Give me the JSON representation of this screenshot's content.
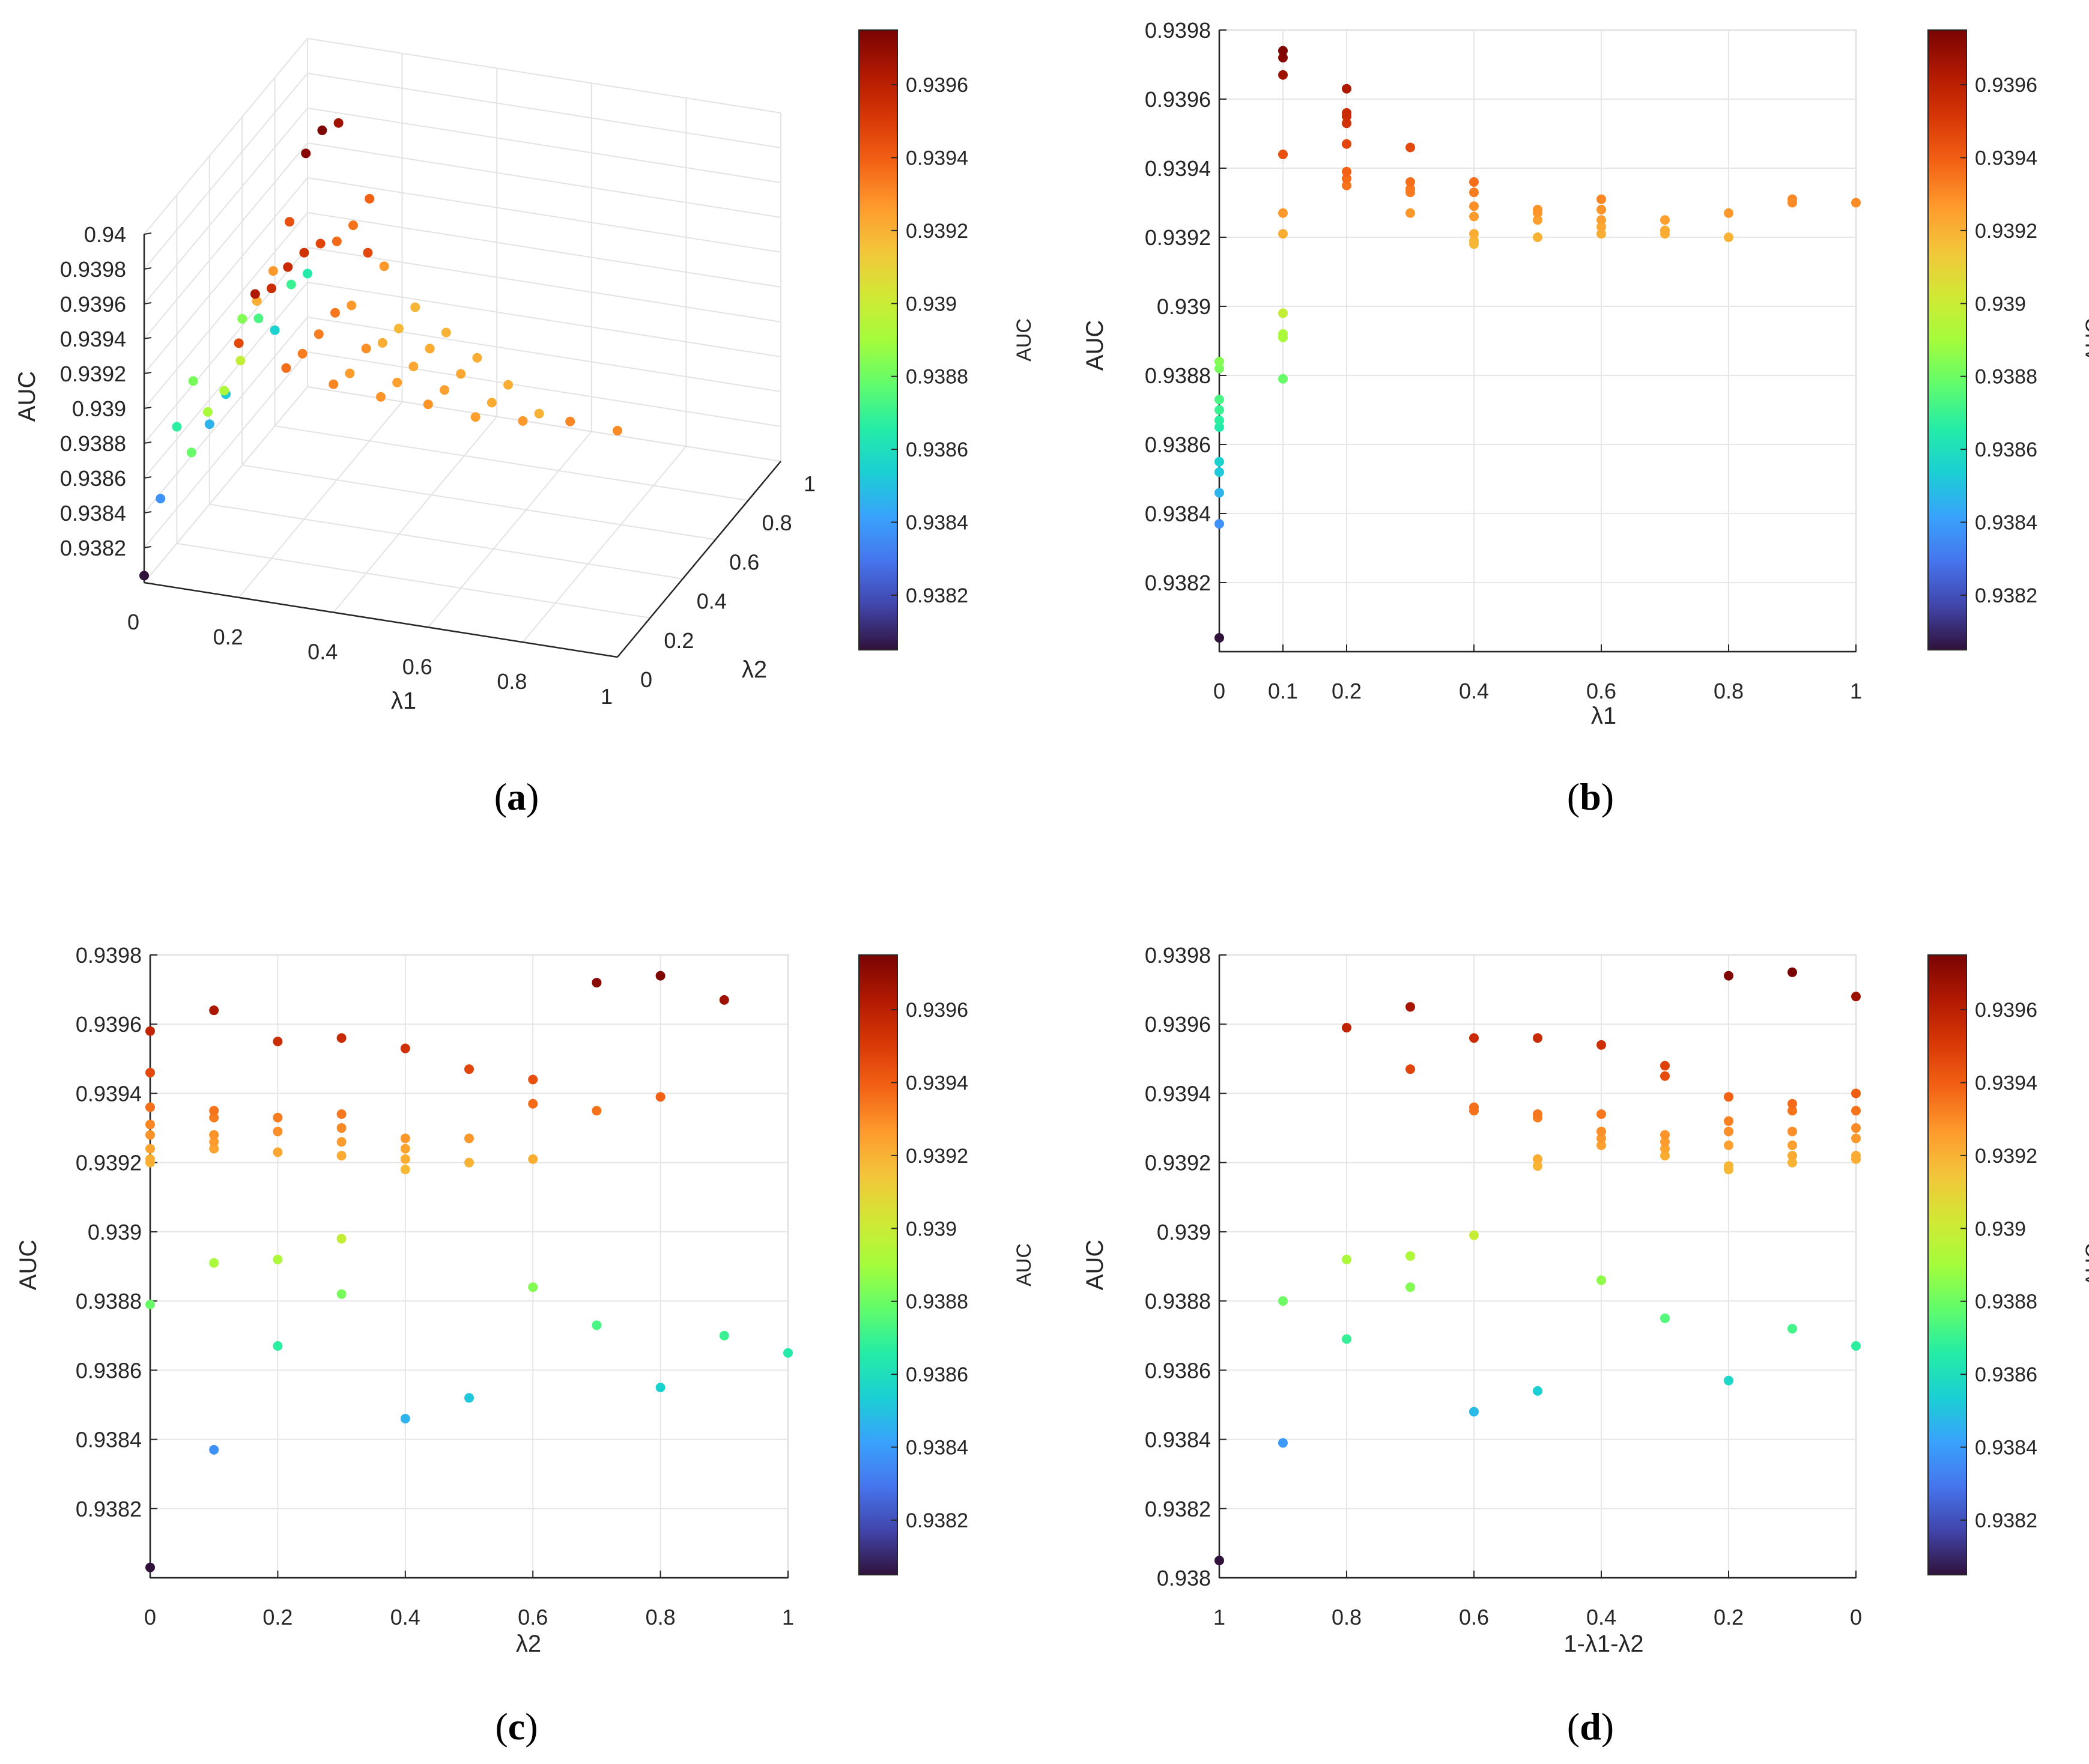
{
  "colormap": [
    "#30123b",
    "#4145ab",
    "#4675ed",
    "#39a2fc",
    "#1bcfd4",
    "#24eca6",
    "#61fc6c",
    "#a4fc3b",
    "#d1e834",
    "#f3c63a",
    "#fe9b2d",
    "#f36315",
    "#d93806",
    "#b11901",
    "#7a0403"
  ],
  "colorbar": {
    "min": 0.93805,
    "max": 0.93975,
    "ticks": [
      "0.9382",
      "0.9384",
      "0.9386",
      "0.9388",
      "0.939",
      "0.9392",
      "0.9394",
      "0.9396"
    ],
    "label": "AUC"
  },
  "captions": {
    "a": "a",
    "b": "b",
    "c": "c",
    "d": "d"
  },
  "chart_data": [
    {
      "id": "a",
      "type": "scatter3d",
      "title": "",
      "xlabel": "λ1",
      "ylabel": "λ2",
      "zlabel": "AUC",
      "xticks": [
        "0",
        "0.2",
        "0.4",
        "0.6",
        "0.8",
        "1"
      ],
      "yticks": [
        "0",
        "0.2",
        "0.4",
        "0.6",
        "0.8",
        "1"
      ],
      "zticks": [
        "0.94",
        "0.9398",
        "0.9396",
        "0.9394",
        "0.9392",
        "0.939",
        "0.9388",
        "0.9386",
        "0.9384",
        "0.9382"
      ],
      "zlim": [
        0.938,
        0.94
      ],
      "points": [
        [
          0,
          0,
          0.93804
        ],
        [
          0,
          0.1,
          0.93837
        ],
        [
          0,
          0.2,
          0.93867
        ],
        [
          0,
          0.3,
          0.93882
        ],
        [
          0,
          0.4,
          0.93846
        ],
        [
          0,
          0.5,
          0.93852
        ],
        [
          0,
          0.6,
          0.93884
        ],
        [
          0,
          0.7,
          0.93873
        ],
        [
          0,
          0.8,
          0.93855
        ],
        [
          0,
          0.9,
          0.9387
        ],
        [
          0,
          1,
          0.93865
        ],
        [
          0.1,
          0,
          0.93879
        ],
        [
          0.1,
          0.1,
          0.93891
        ],
        [
          0.1,
          0.2,
          0.93892
        ],
        [
          0.1,
          0.3,
          0.93898
        ],
        [
          0.1,
          0.4,
          0.93921
        ],
        [
          0.1,
          0.5,
          0.93927
        ],
        [
          0.1,
          0.6,
          0.93944
        ],
        [
          0.1,
          0.7,
          0.93972
        ],
        [
          0.1,
          0.8,
          0.93974
        ],
        [
          0.1,
          0.9,
          0.93967
        ],
        [
          0.2,
          0,
          0.93946
        ],
        [
          0.2,
          0.1,
          0.93963
        ],
        [
          0.2,
          0.2,
          0.93955
        ],
        [
          0.2,
          0.3,
          0.93956
        ],
        [
          0.2,
          0.4,
          0.93953
        ],
        [
          0.2,
          0.5,
          0.93947
        ],
        [
          0.2,
          0.6,
          0.93937
        ],
        [
          0.2,
          0.7,
          0.93935
        ],
        [
          0.2,
          0.8,
          0.93939
        ],
        [
          0.3,
          0,
          0.93936
        ],
        [
          0.3,
          0.1,
          0.93933
        ],
        [
          0.3,
          0.2,
          0.93933
        ],
        [
          0.3,
          0.3,
          0.93934
        ],
        [
          0.3,
          0.4,
          0.93927
        ],
        [
          0.3,
          0.5,
          0.93946
        ],
        [
          0.3,
          0.6,
          0.93927
        ],
        [
          0.4,
          0,
          0.93931
        ],
        [
          0.4,
          0.1,
          0.93926
        ],
        [
          0.4,
          0.2,
          0.93929
        ],
        [
          0.4,
          0.3,
          0.93921
        ],
        [
          0.4,
          0.4,
          0.93918
        ],
        [
          0.4,
          0.5,
          0.93919
        ],
        [
          0.5,
          0,
          0.93928
        ],
        [
          0.5,
          0.1,
          0.93925
        ],
        [
          0.5,
          0.2,
          0.93923
        ],
        [
          0.5,
          0.3,
          0.93922
        ],
        [
          0.5,
          0.4,
          0.9392
        ],
        [
          0.6,
          0,
          0.93928
        ],
        [
          0.6,
          0.1,
          0.93925
        ],
        [
          0.6,
          0.2,
          0.93923
        ],
        [
          0.6,
          0.3,
          0.93921
        ],
        [
          0.7,
          0,
          0.93925
        ],
        [
          0.7,
          0.1,
          0.93922
        ],
        [
          0.7,
          0.2,
          0.93921
        ],
        [
          0.8,
          0,
          0.93927
        ],
        [
          0.8,
          0.1,
          0.9392
        ],
        [
          0.9,
          0,
          0.93931
        ],
        [
          1,
          0,
          0.9393
        ]
      ]
    },
    {
      "id": "b",
      "type": "scatter",
      "xlabel": "λ1",
      "ylabel": "AUC",
      "xlim": [
        0,
        1
      ],
      "ylim": [
        0.938,
        0.9398
      ],
      "xticks": [
        0,
        0.1,
        0.2,
        0.4,
        0.6,
        0.8,
        1
      ],
      "xticklabels": [
        "0",
        "0.1",
        "0.2",
        "0.4",
        "0.6",
        "0.8",
        "1"
      ],
      "yticks": [
        0.9382,
        0.9384,
        0.9386,
        0.9388,
        0.939,
        0.9392,
        0.9394,
        0.9396,
        0.9398
      ],
      "yticklabels": [
        "0.9382",
        "0.9384",
        "0.9386",
        "0.9388",
        "0.939",
        "0.9392",
        "0.9394",
        "0.9396",
        "0.9398"
      ],
      "points": [
        [
          0,
          0.93804
        ],
        [
          0,
          0.93837
        ],
        [
          0,
          0.93846
        ],
        [
          0,
          0.93852
        ],
        [
          0,
          0.93855
        ],
        [
          0,
          0.93865
        ],
        [
          0,
          0.93867
        ],
        [
          0,
          0.9387
        ],
        [
          0,
          0.93873
        ],
        [
          0,
          0.93882
        ],
        [
          0,
          0.93884
        ],
        [
          0.1,
          0.93879
        ],
        [
          0.1,
          0.93891
        ],
        [
          0.1,
          0.93892
        ],
        [
          0.1,
          0.93898
        ],
        [
          0.1,
          0.93921
        ],
        [
          0.1,
          0.93927
        ],
        [
          0.1,
          0.93944
        ],
        [
          0.1,
          0.93967
        ],
        [
          0.1,
          0.93972
        ],
        [
          0.1,
          0.93974
        ],
        [
          0.2,
          0.93935
        ],
        [
          0.2,
          0.93937
        ],
        [
          0.2,
          0.93939
        ],
        [
          0.2,
          0.93947
        ],
        [
          0.2,
          0.93953
        ],
        [
          0.2,
          0.93955
        ],
        [
          0.2,
          0.93956
        ],
        [
          0.2,
          0.93963
        ],
        [
          0.3,
          0.93927
        ],
        [
          0.3,
          0.93933
        ],
        [
          0.3,
          0.93934
        ],
        [
          0.3,
          0.93936
        ],
        [
          0.3,
          0.93946
        ],
        [
          0.4,
          0.93918
        ],
        [
          0.4,
          0.93919
        ],
        [
          0.4,
          0.93921
        ],
        [
          0.4,
          0.93926
        ],
        [
          0.4,
          0.93929
        ],
        [
          0.4,
          0.93933
        ],
        [
          0.4,
          0.93936
        ],
        [
          0.5,
          0.9392
        ],
        [
          0.5,
          0.93925
        ],
        [
          0.5,
          0.93927
        ],
        [
          0.5,
          0.93928
        ],
        [
          0.6,
          0.93921
        ],
        [
          0.6,
          0.93923
        ],
        [
          0.6,
          0.93925
        ],
        [
          0.6,
          0.93928
        ],
        [
          0.6,
          0.93931
        ],
        [
          0.7,
          0.93921
        ],
        [
          0.7,
          0.93922
        ],
        [
          0.7,
          0.93925
        ],
        [
          0.8,
          0.9392
        ],
        [
          0.8,
          0.93927
        ],
        [
          0.9,
          0.93931
        ],
        [
          0.9,
          0.9393
        ],
        [
          1,
          0.9393
        ]
      ]
    },
    {
      "id": "c",
      "type": "scatter",
      "xlabel": "λ2",
      "ylabel": "AUC",
      "xlim": [
        0,
        1
      ],
      "ylim": [
        0.938,
        0.9398
      ],
      "xticks": [
        0,
        0.2,
        0.4,
        0.6,
        0.8,
        1
      ],
      "xticklabels": [
        "0",
        "0.2",
        "0.4",
        "0.6",
        "0.8",
        "1"
      ],
      "yticks": [
        0.9382,
        0.9384,
        0.9386,
        0.9388,
        0.939,
        0.9392,
        0.9394,
        0.9396,
        0.9398
      ],
      "yticklabels": [
        "0.9382",
        "0.9384",
        "0.9386",
        "0.9388",
        "0.939",
        "0.9392",
        "0.9394",
        "0.9396",
        "0.9398"
      ],
      "points": [
        [
          0,
          0.93803
        ],
        [
          0,
          0.93879
        ],
        [
          0,
          0.9392
        ],
        [
          0,
          0.93921
        ],
        [
          0,
          0.93924
        ],
        [
          0,
          0.93928
        ],
        [
          0,
          0.93931
        ],
        [
          0,
          0.93936
        ],
        [
          0,
          0.93946
        ],
        [
          0,
          0.93958
        ],
        [
          0.1,
          0.93837
        ],
        [
          0.1,
          0.93891
        ],
        [
          0.1,
          0.93924
        ],
        [
          0.1,
          0.93926
        ],
        [
          0.1,
          0.93928
        ],
        [
          0.1,
          0.93933
        ],
        [
          0.1,
          0.93935
        ],
        [
          0.1,
          0.93964
        ],
        [
          0.2,
          0.93867
        ],
        [
          0.2,
          0.93892
        ],
        [
          0.2,
          0.93923
        ],
        [
          0.2,
          0.93929
        ],
        [
          0.2,
          0.93933
        ],
        [
          0.2,
          0.93955
        ],
        [
          0.3,
          0.93882
        ],
        [
          0.3,
          0.93898
        ],
        [
          0.3,
          0.93922
        ],
        [
          0.3,
          0.93926
        ],
        [
          0.3,
          0.9393
        ],
        [
          0.3,
          0.93934
        ],
        [
          0.3,
          0.93956
        ],
        [
          0.4,
          0.93846
        ],
        [
          0.4,
          0.93918
        ],
        [
          0.4,
          0.93921
        ],
        [
          0.4,
          0.93924
        ],
        [
          0.4,
          0.93927
        ],
        [
          0.4,
          0.93953
        ],
        [
          0.5,
          0.93852
        ],
        [
          0.5,
          0.9392
        ],
        [
          0.5,
          0.93927
        ],
        [
          0.5,
          0.93947
        ],
        [
          0.6,
          0.93884
        ],
        [
          0.6,
          0.93921
        ],
        [
          0.6,
          0.93937
        ],
        [
          0.6,
          0.93944
        ],
        [
          0.7,
          0.93873
        ],
        [
          0.7,
          0.93935
        ],
        [
          0.7,
          0.93972
        ],
        [
          0.8,
          0.93855
        ],
        [
          0.8,
          0.93939
        ],
        [
          0.8,
          0.93974
        ],
        [
          0.9,
          0.9387
        ],
        [
          0.9,
          0.93967
        ],
        [
          1,
          0.93865
        ]
      ]
    },
    {
      "id": "d",
      "type": "scatter",
      "xlabel": "1-λ1-λ2",
      "ylabel": "AUC",
      "xlim": [
        1,
        0
      ],
      "ylim": [
        0.938,
        0.9398
      ],
      "xticks": [
        1,
        0.8,
        0.6,
        0.4,
        0.2,
        0
      ],
      "xticklabels": [
        "1",
        "0.8",
        "0.6",
        "0.4",
        "0.2",
        "0"
      ],
      "yticks": [
        0.938,
        0.9382,
        0.9384,
        0.9386,
        0.9388,
        0.939,
        0.9392,
        0.9394,
        0.9396,
        0.9398
      ],
      "yticklabels": [
        "0.938",
        "0.9382",
        "0.9384",
        "0.9386",
        "0.9388",
        "0.939",
        "0.9392",
        "0.9394",
        "0.9396",
        "0.9398"
      ],
      "points": [
        [
          1,
          0.93805
        ],
        [
          0.9,
          0.93839
        ],
        [
          0.9,
          0.9388
        ],
        [
          0.8,
          0.93869
        ],
        [
          0.8,
          0.93892
        ],
        [
          0.8,
          0.93959
        ],
        [
          0.7,
          0.93884
        ],
        [
          0.7,
          0.93893
        ],
        [
          0.7,
          0.93947
        ],
        [
          0.7,
          0.93965
        ],
        [
          0.6,
          0.93848
        ],
        [
          0.6,
          0.93899
        ],
        [
          0.6,
          0.93935
        ],
        [
          0.6,
          0.93936
        ],
        [
          0.6,
          0.93956
        ],
        [
          0.5,
          0.93854
        ],
        [
          0.5,
          0.93919
        ],
        [
          0.5,
          0.93921
        ],
        [
          0.5,
          0.93933
        ],
        [
          0.5,
          0.93934
        ],
        [
          0.5,
          0.93956
        ],
        [
          0.4,
          0.93886
        ],
        [
          0.4,
          0.93925
        ],
        [
          0.4,
          0.93927
        ],
        [
          0.4,
          0.93929
        ],
        [
          0.4,
          0.93934
        ],
        [
          0.4,
          0.93954
        ],
        [
          0.3,
          0.93875
        ],
        [
          0.3,
          0.93922
        ],
        [
          0.3,
          0.93924
        ],
        [
          0.3,
          0.93926
        ],
        [
          0.3,
          0.93928
        ],
        [
          0.3,
          0.93945
        ],
        [
          0.3,
          0.93948
        ],
        [
          0.2,
          0.93857
        ],
        [
          0.2,
          0.93918
        ],
        [
          0.2,
          0.93919
        ],
        [
          0.2,
          0.93925
        ],
        [
          0.2,
          0.93929
        ],
        [
          0.2,
          0.93932
        ],
        [
          0.2,
          0.93939
        ],
        [
          0.2,
          0.93974
        ],
        [
          0.1,
          0.93872
        ],
        [
          0.1,
          0.9392
        ],
        [
          0.1,
          0.93922
        ],
        [
          0.1,
          0.93925
        ],
        [
          0.1,
          0.93929
        ],
        [
          0.1,
          0.93935
        ],
        [
          0.1,
          0.93937
        ],
        [
          0.1,
          0.93975
        ],
        [
          0,
          0.93867
        ],
        [
          0,
          0.93921
        ],
        [
          0,
          0.93922
        ],
        [
          0,
          0.93927
        ],
        [
          0,
          0.9393
        ],
        [
          0,
          0.93935
        ],
        [
          0,
          0.9394
        ],
        [
          0,
          0.93968
        ]
      ]
    }
  ]
}
